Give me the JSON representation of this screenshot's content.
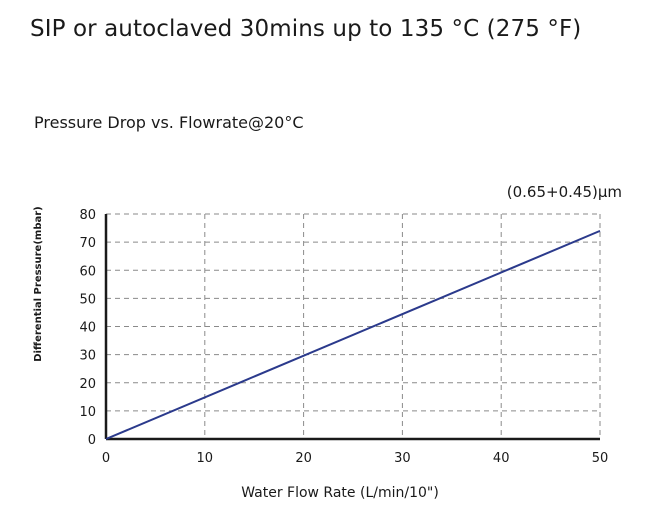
{
  "header": {
    "title": "SIP or autoclaved 30mins up to 135 °C (275 °F)",
    "subtitle": "Pressure Drop vs. Flowrate@20°C"
  },
  "chart_data": {
    "type": "line",
    "title": "Pressure Drop vs. Flowrate@20°C",
    "xlabel": "Water Flow Rate (L/min/10\")",
    "ylabel": "Differential Pressure(mbar)",
    "xlim": [
      0,
      50
    ],
    "ylim": [
      0,
      80
    ],
    "x_ticks": [
      0,
      10,
      20,
      30,
      40,
      50
    ],
    "y_ticks": [
      0,
      10,
      20,
      30,
      40,
      50,
      60,
      70,
      80
    ],
    "grid": true,
    "grid_style": "dashed",
    "series": [
      {
        "name": "(0.65+0.45)μm",
        "color": "#2b3a8c",
        "x": [
          0,
          50
        ],
        "y": [
          0,
          74
        ]
      }
    ],
    "legend_placement": "top-right"
  }
}
